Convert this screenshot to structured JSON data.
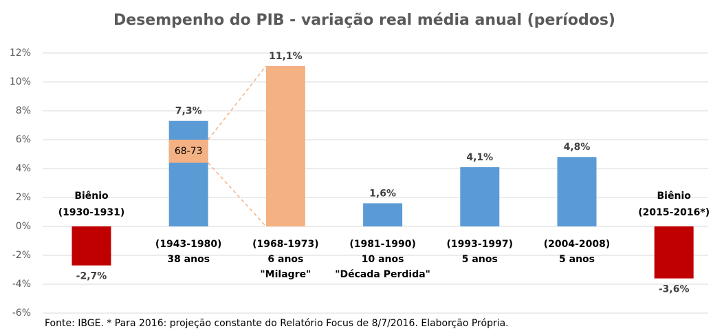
{
  "chart_data": {
    "type": "bar",
    "title": "Desempenho do PIB - variação real média anual (períodos)",
    "categories": [
      [
        "Biênio",
        "(1930-1931)"
      ],
      [
        "(1943-1980)",
        "38 anos"
      ],
      [
        "(1968-1973)",
        "6 anos",
        "\"Milagre\""
      ],
      [
        "(1981-1990)",
        "10 anos",
        "\"Década Perdida\""
      ],
      [
        "(1993-1997)",
        "5 anos"
      ],
      [
        "(2004-2008)",
        "5 anos"
      ],
      [
        "Biênio",
        "(2015-2016*)"
      ]
    ],
    "values": [
      -2.7,
      7.3,
      11.1,
      1.6,
      4.1,
      4.8,
      -3.6
    ],
    "value_labels": [
      "-2,7%",
      "7,3%",
      "11,1%",
      "1,6%",
      "4,1%",
      "4,8%",
      "-3,6%"
    ],
    "colors": [
      "#c00000",
      "#5b9bd5",
      "#f4b183",
      "#5b9bd5",
      "#5b9bd5",
      "#5b9bd5",
      "#c00000"
    ],
    "highlight": {
      "label": "68-73",
      "from": 4.4,
      "to": 6.0,
      "color": "#f4b183",
      "bar": 1,
      "target": 2
    },
    "ylim": [
      -6,
      12
    ],
    "yticks": [
      {
        "value": -6,
        "label": "-6%"
      },
      {
        "value": -4,
        "label": "-4%"
      },
      {
        "value": -2,
        "label": "-2%"
      },
      {
        "value": 0,
        "label": "0%"
      },
      {
        "value": 2,
        "label": "2%"
      },
      {
        "value": 4,
        "label": "4%"
      },
      {
        "value": 6,
        "label": "6%"
      },
      {
        "value": 8,
        "label": "8%"
      },
      {
        "value": 10,
        "label": "10%"
      },
      {
        "value": 12,
        "label": "12%"
      }
    ],
    "grid": true,
    "footnote": "Fonte: IBGE. * Para 2016:  projeção constante do Relatório Focus de 8/7/2016.  Elaborção Própria."
  }
}
